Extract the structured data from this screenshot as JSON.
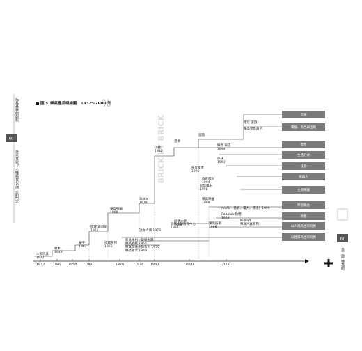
{
  "margin_left": {
    "title": "玩具產業的創新",
    "page": "60",
    "chapter": "未來世界？人機結合10億人的明天"
  },
  "margin_right": {
    "page": "61",
    "chapter": "第三部 樂高組"
  },
  "figure": {
    "label": "圖 5",
    "title": "樂高產品總線圖：1932～2000 年",
    "watermark": "BRICK BY BRICK"
  },
  "axis_years": [
    "1932",
    "1949",
    "1958",
    "1960",
    "1970",
    "1978",
    "1980",
    "1990",
    "2000"
  ],
  "categories": [
    "音樂",
    "電腦、角色與出版",
    "零售",
    "生活方式",
    "技能",
    "機器人",
    "主題樂園",
    "學習概念",
    "軟體",
    "以人偶為主的玩樂",
    "以建築為主的玩樂"
  ],
  "products": [
    {
      "name": "木製玩具",
      "year": "1932"
    },
    {
      "name": "積木",
      "year": "1949"
    },
    {
      "name": "輪子",
      "year": "1962"
    },
    {
      "name": "得寶 遊戲組",
      "year": "1961"
    },
    {
      "name": "得寶系列",
      "year": "1966"
    },
    {
      "name": "樂高樂園",
      "year": "1968"
    },
    {
      "name": "新品推出／玩樂主題",
      "year": "樂高系統 1955"
    },
    {
      "name": "樂高創意大師系列 1979",
      "year": "樂高積木 1949"
    },
    {
      "name": "迷你人偶 1978",
      "year": ""
    },
    {
      "name": "Scala",
      "year": "1979"
    },
    {
      "name": "小豬",
      "year": "1982"
    },
    {
      "name": "音樂",
      "year": ""
    },
    {
      "name": "遊戲",
      "year": ""
    },
    {
      "name": "電玩 遊戲",
      "year": ""
    },
    {
      "name": "樂高零售商店",
      "year": ""
    },
    {
      "name": "樂高 商店",
      "year": "1994"
    },
    {
      "name": "手錶",
      "year": "1993"
    },
    {
      "name": "技客積木",
      "year": "1991"
    },
    {
      "name": "教育積木",
      "year": "1994"
    },
    {
      "name": "智慧積木",
      "year": "1998"
    },
    {
      "name": "樂高樂園",
      "year": "1999"
    },
    {
      "name": "創意大師",
      "year": "1998"
    },
    {
      "name": "mLAB（教育、電力、環境）1999",
      "year": ""
    },
    {
      "name": "Robolab 軟體",
      "year": "1998"
    },
    {
      "name": "創意大師教育中心",
      "year": "1986"
    },
    {
      "name": "樂高技術",
      "year": "1966"
    },
    {
      "name": "KidPad",
      "year": "樂高片具系列"
    }
  ]
}
